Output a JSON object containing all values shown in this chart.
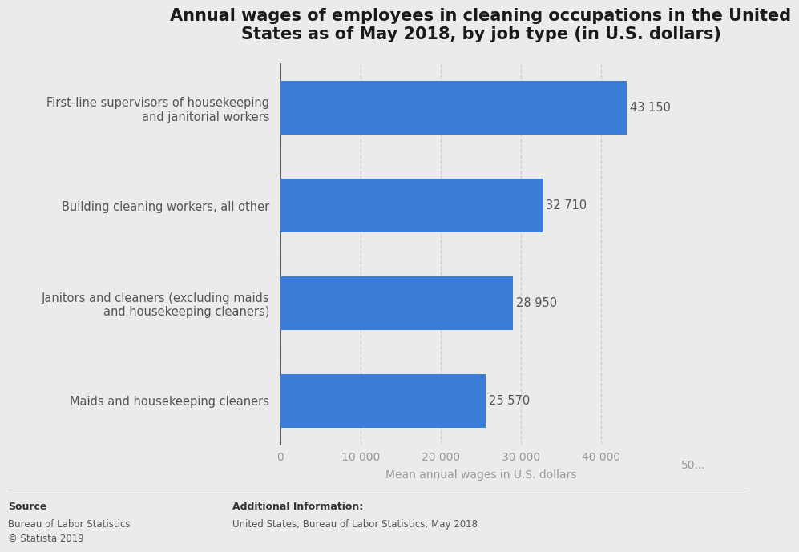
{
  "title": "Annual wages of employees in cleaning occupations in the United\nStates as of May 2018, by job type (in U.S. dollars)",
  "categories": [
    "Maids and housekeeping cleaners",
    "Janitors and cleaners (excluding maids\nand housekeeping cleaners)",
    "Building cleaning workers, all other",
    "First-line supervisors of housekeeping\nand janitorial workers"
  ],
  "values": [
    25570,
    28950,
    32710,
    43150
  ],
  "bar_color": "#3b7dd8",
  "bar_labels": [
    "25 570",
    "28 950",
    "32 710",
    "43 150"
  ],
  "xlabel": "Mean annual wages in U.S. dollars",
  "xlim": [
    0,
    50000
  ],
  "xticks": [
    0,
    10000,
    20000,
    30000,
    40000
  ],
  "xtick_labels": [
    "0",
    "10 000",
    "20 000",
    "30 000",
    "40 000"
  ],
  "background_color": "#ebebeb",
  "plot_bg_color": "#ebebeb",
  "title_fontsize": 15,
  "label_fontsize": 10.5,
  "tick_fontsize": 10,
  "xlabel_fontsize": 10,
  "source_text": "Source\nBureau of Labor Statistics\n© Statista 2019",
  "additional_info_bold": "Additional Information:",
  "additional_info_normal": "United States; Bureau of Labor Statistics; May 2018",
  "bar_height": 0.55,
  "grid_color": "#cccccc",
  "value_label_color": "#555555",
  "category_label_color": "#555555",
  "tick_color": "#999999",
  "spine_color": "#444444"
}
